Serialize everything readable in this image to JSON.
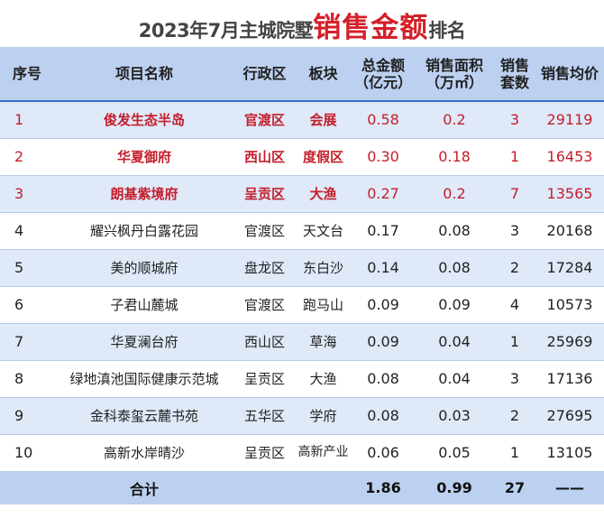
{
  "title": {
    "prefix": "2023年7月主城院墅",
    "highlight": "销售金额",
    "suffix": "排名"
  },
  "columns": {
    "rank": "序号",
    "project": "项目名称",
    "district": "行政区",
    "block": "板块",
    "amount": "总金额（亿元）",
    "area": "销售面积（万㎡）",
    "units": "销售套数",
    "price": "销售均价"
  },
  "rows": [
    {
      "rank": "1",
      "project": "俊发生态半岛",
      "district": "官渡区",
      "block": "会展",
      "amount": "0.58",
      "area": "0.2",
      "units": "3",
      "price": "29119"
    },
    {
      "rank": "2",
      "project": "华夏御府",
      "district": "西山区",
      "block": "度假区",
      "amount": "0.30",
      "area": "0.18",
      "units": "1",
      "price": "16453"
    },
    {
      "rank": "3",
      "project": "朗基紫境府",
      "district": "呈贡区",
      "block": "大渔",
      "amount": "0.27",
      "area": "0.2",
      "units": "7",
      "price": "13565"
    },
    {
      "rank": "4",
      "project": "耀兴枫丹白露花园",
      "district": "官渡区",
      "block": "天文台",
      "amount": "0.17",
      "area": "0.08",
      "units": "3",
      "price": "20168"
    },
    {
      "rank": "5",
      "project": "美的顺城府",
      "district": "盘龙区",
      "block": "东白沙",
      "amount": "0.14",
      "area": "0.08",
      "units": "2",
      "price": "17284"
    },
    {
      "rank": "6",
      "project": "子君山麓城",
      "district": "官渡区",
      "block": "跑马山",
      "amount": "0.09",
      "area": "0.09",
      "units": "4",
      "price": "10573"
    },
    {
      "rank": "7",
      "project": "华夏澜台府",
      "district": "西山区",
      "block": "草海",
      "amount": "0.09",
      "area": "0.04",
      "units": "1",
      "price": "25969"
    },
    {
      "rank": "8",
      "project": "绿地滇池国际健康示范城",
      "district": "呈贡区",
      "block": "大渔",
      "amount": "0.08",
      "area": "0.04",
      "units": "3",
      "price": "17136"
    },
    {
      "rank": "9",
      "project": "金科泰玺云麓书苑",
      "district": "五华区",
      "block": "学府",
      "amount": "0.08",
      "area": "0.03",
      "units": "2",
      "price": "27695"
    },
    {
      "rank": "10",
      "project": "高新水岸晴沙",
      "district": "呈贡区",
      "block": "高新产业",
      "amount": "0.06",
      "area": "0.05",
      "units": "1",
      "price": "13105"
    }
  ],
  "total": {
    "label": "合计",
    "amount": "1.86",
    "area": "0.99",
    "units": "27",
    "price": "——"
  },
  "colors": {
    "highlight": "#d4202a",
    "header_bg": "#bcd0f0",
    "alt_row": "#dfe9f8"
  }
}
